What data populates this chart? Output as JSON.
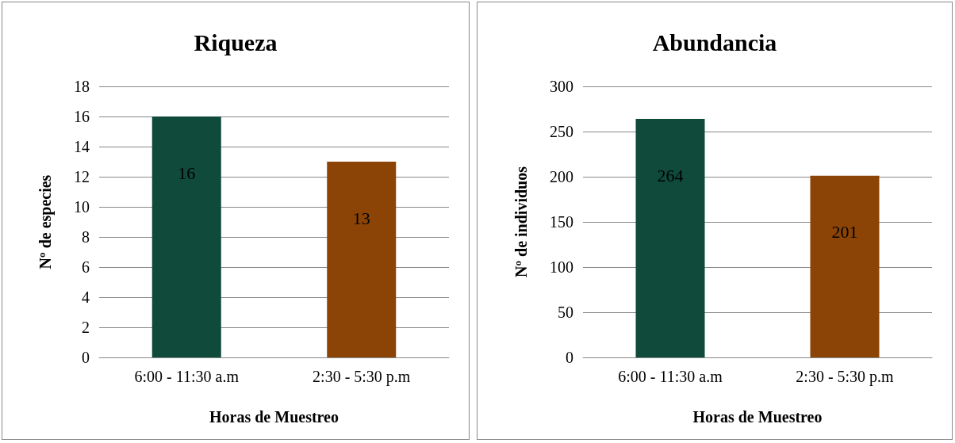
{
  "chart_data": [
    {
      "type": "bar",
      "title": "Riqueza",
      "xlabel": "Horas de Muestreo",
      "ylabel": "Nº de especies",
      "categories": [
        "6:00 - 11:30 a.m",
        "2:30 - 5:30 p.m"
      ],
      "values": [
        16,
        13
      ],
      "colors": [
        "#0f4a3a",
        "#8b4406"
      ],
      "ylim": [
        0,
        18
      ],
      "yticks": [
        0,
        2,
        4,
        6,
        8,
        10,
        12,
        14,
        16,
        18
      ],
      "grid": "y",
      "data_labels": true
    },
    {
      "type": "bar",
      "title": "Abundancia",
      "xlabel": "Horas de Muestreo",
      "ylabel": "Nº de individuos",
      "categories": [
        "6:00 - 11:30 a.m",
        "2:30 - 5:30 p.m"
      ],
      "values": [
        264,
        201
      ],
      "colors": [
        "#0f4a3a",
        "#8b4406"
      ],
      "ylim": [
        0,
        300
      ],
      "yticks": [
        0,
        50,
        100,
        150,
        200,
        250,
        300
      ],
      "grid": "y",
      "data_labels": true
    }
  ]
}
